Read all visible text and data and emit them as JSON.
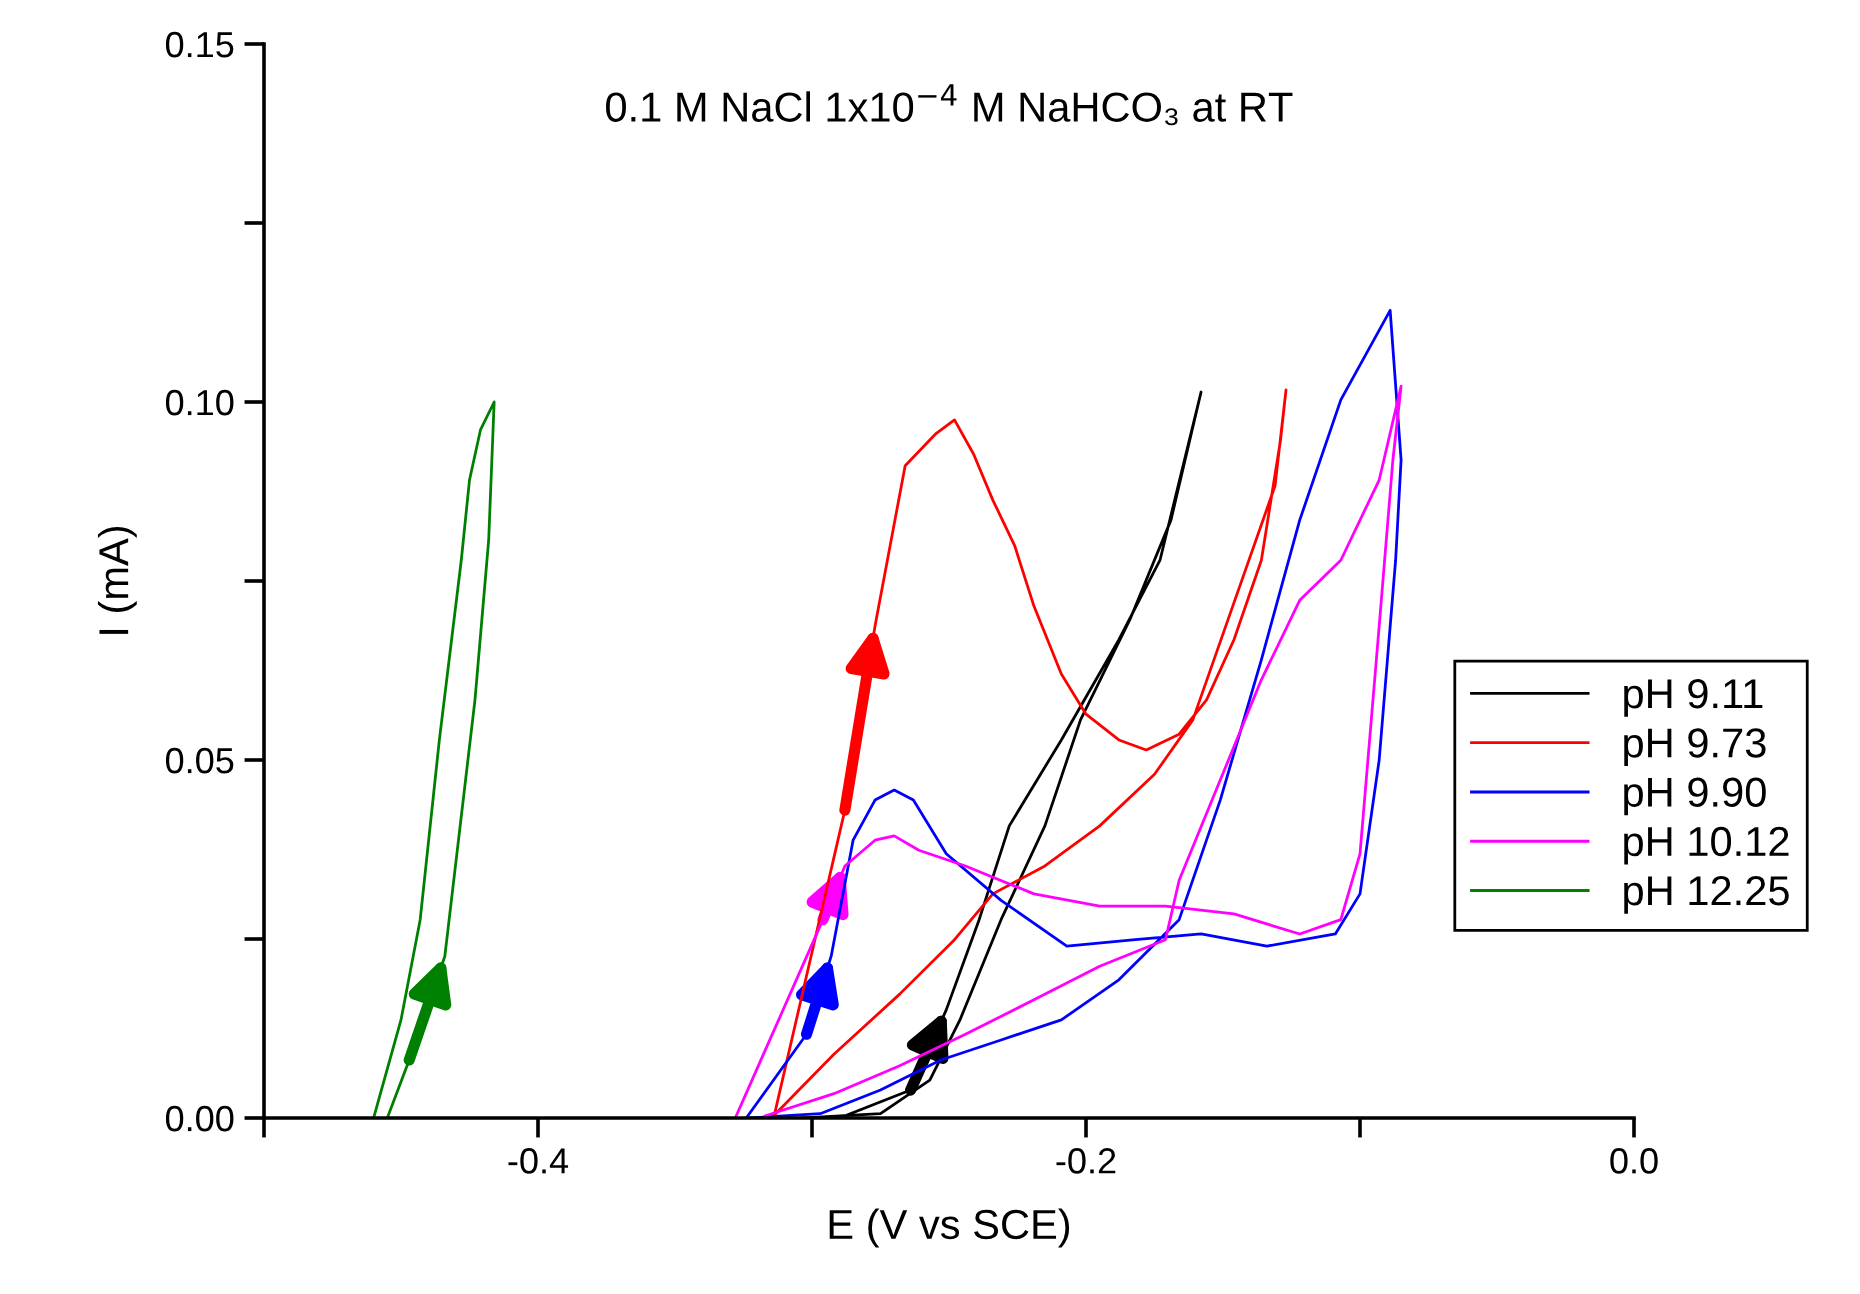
{
  "chart_data": {
    "type": "line",
    "title": "0.1 M NaCl 1x10$^{−4}$ M NaHCO₃ at RT",
    "xlabel": "E (V vs SCE)",
    "ylabel": "I (mA)",
    "xlim": [
      -0.5,
      0
    ],
    "ylim": [
      0,
      0.15
    ],
    "xticks": [
      {
        "value": -0.5,
        "label": null
      },
      -0.4,
      {
        "value": -0.3,
        "label": null
      },
      -0.2,
      {
        "value": -0.1,
        "label": null
      },
      {
        "value": 0,
        "label": "0.0"
      }
    ],
    "yticks": [
      {
        "value": 0,
        "label": "0.00"
      },
      {
        "value": 0.025,
        "label": null
      },
      0.05,
      {
        "value": 0.075,
        "label": null
      },
      {
        "value": 0.1,
        "label": "0.10"
      },
      {
        "value": 0.125,
        "label": null
      },
      0.15
    ],
    "grid": false,
    "legend": "right",
    "marker": "none",
    "line_style": "solid",
    "series": [
      {
        "name": "pH 9.11",
        "color": "#000000",
        "x": [
          -0.29,
          -0.264,
          -0.251,
          -0.239,
          -0.228,
          -0.209,
          -0.188,
          -0.173,
          -0.158,
          -0.169,
          -0.184,
          -0.202,
          -0.215,
          -0.231,
          -0.246,
          -0.257,
          -0.275,
          -0.304
        ],
        "values": [
          0,
          0.0039,
          0.0151,
          0.0277,
          0.0408,
          0.0528,
          0.0668,
          0.0779,
          0.1014,
          0.0835,
          0.0696,
          0.0556,
          0.0408,
          0.0277,
          0.0137,
          0.0053,
          0.0006,
          0
        ]
      },
      {
        "name": "pH 9.73",
        "color": "#ff0000",
        "x": [
          -0.314,
          -0.288,
          -0.277,
          -0.266,
          -0.255,
          -0.248,
          -0.241,
          -0.234,
          -0.226,
          -0.219,
          -0.209,
          -0.2,
          -0.188,
          -0.178,
          -0.166,
          -0.156,
          -0.146,
          -0.136,
          -0.129,
          -0.127,
          -0.131,
          -0.149,
          -0.161,
          -0.175,
          -0.195,
          -0.215,
          -0.234,
          -0.248,
          -0.268,
          -0.292,
          -0.314
        ],
        "values": [
          0,
          0.043,
          0.0687,
          0.0911,
          0.0955,
          0.0975,
          0.0927,
          0.0863,
          0.0799,
          0.0715,
          0.062,
          0.0564,
          0.0528,
          0.0514,
          0.0536,
          0.0584,
          0.0668,
          0.0779,
          0.0947,
          0.1017,
          0.0883,
          0.0687,
          0.0556,
          0.048,
          0.0408,
          0.0352,
          0.0313,
          0.0249,
          0.0173,
          0.0089,
          0.0003
        ]
      },
      {
        "name": "pH 9.90",
        "color": "#0000ff",
        "x": [
          -0.324,
          -0.302,
          -0.293,
          -0.285,
          -0.277,
          -0.27,
          -0.263,
          -0.251,
          -0.231,
          -0.207,
          -0.182,
          -0.158,
          -0.134,
          -0.109,
          -0.1,
          -0.093,
          -0.087,
          -0.085,
          -0.089,
          -0.107,
          -0.122,
          -0.136,
          -0.151,
          -0.166,
          -0.188,
          -0.209,
          -0.231,
          -0.253,
          -0.275,
          -0.297,
          -0.323
        ],
        "values": [
          0,
          0.0117,
          0.0226,
          0.0388,
          0.0444,
          0.0458,
          0.0444,
          0.0369,
          0.0304,
          0.024,
          0.0249,
          0.0257,
          0.024,
          0.0257,
          0.0313,
          0.05,
          0.0779,
          0.0919,
          0.1128,
          0.1003,
          0.0835,
          0.064,
          0.0444,
          0.0277,
          0.0193,
          0.0137,
          0.0109,
          0.0081,
          0.0039,
          0.0006,
          0
        ]
      },
      {
        "name": "pH 10.12",
        "color": "#ff00ff",
        "x": [
          -0.328,
          -0.296,
          -0.288,
          -0.277,
          -0.27,
          -0.261,
          -0.244,
          -0.219,
          -0.195,
          -0.171,
          -0.146,
          -0.122,
          -0.107,
          -0.1,
          -0.093,
          -0.088,
          -0.085,
          -0.093,
          -0.107,
          -0.122,
          -0.136,
          -0.151,
          -0.166,
          -0.171,
          -0.195,
          -0.219,
          -0.244,
          -0.268,
          -0.292,
          -0.317
        ],
        "values": [
          0,
          0.0277,
          0.0352,
          0.0388,
          0.0394,
          0.0374,
          0.0352,
          0.0313,
          0.0296,
          0.0296,
          0.0285,
          0.0257,
          0.0277,
          0.0369,
          0.0687,
          0.0919,
          0.1022,
          0.0891,
          0.0779,
          0.0723,
          0.0612,
          0.0472,
          0.0332,
          0.0249,
          0.0212,
          0.0165,
          0.0117,
          0.0073,
          0.0034,
          0.0003
        ]
      },
      {
        "name": "pH 12.25",
        "color": "#008000",
        "x": [
          -0.455,
          -0.447,
          -0.434,
          -0.423,
          -0.418,
          -0.416,
          -0.421,
          -0.425,
          -0.428,
          -0.436,
          -0.443,
          -0.45,
          -0.46
        ],
        "values": [
          0,
          0.0081,
          0.0226,
          0.0584,
          0.0807,
          0.1,
          0.0961,
          0.0891,
          0.0779,
          0.0528,
          0.0277,
          0.0137,
          0
        ]
      }
    ]
  }
}
